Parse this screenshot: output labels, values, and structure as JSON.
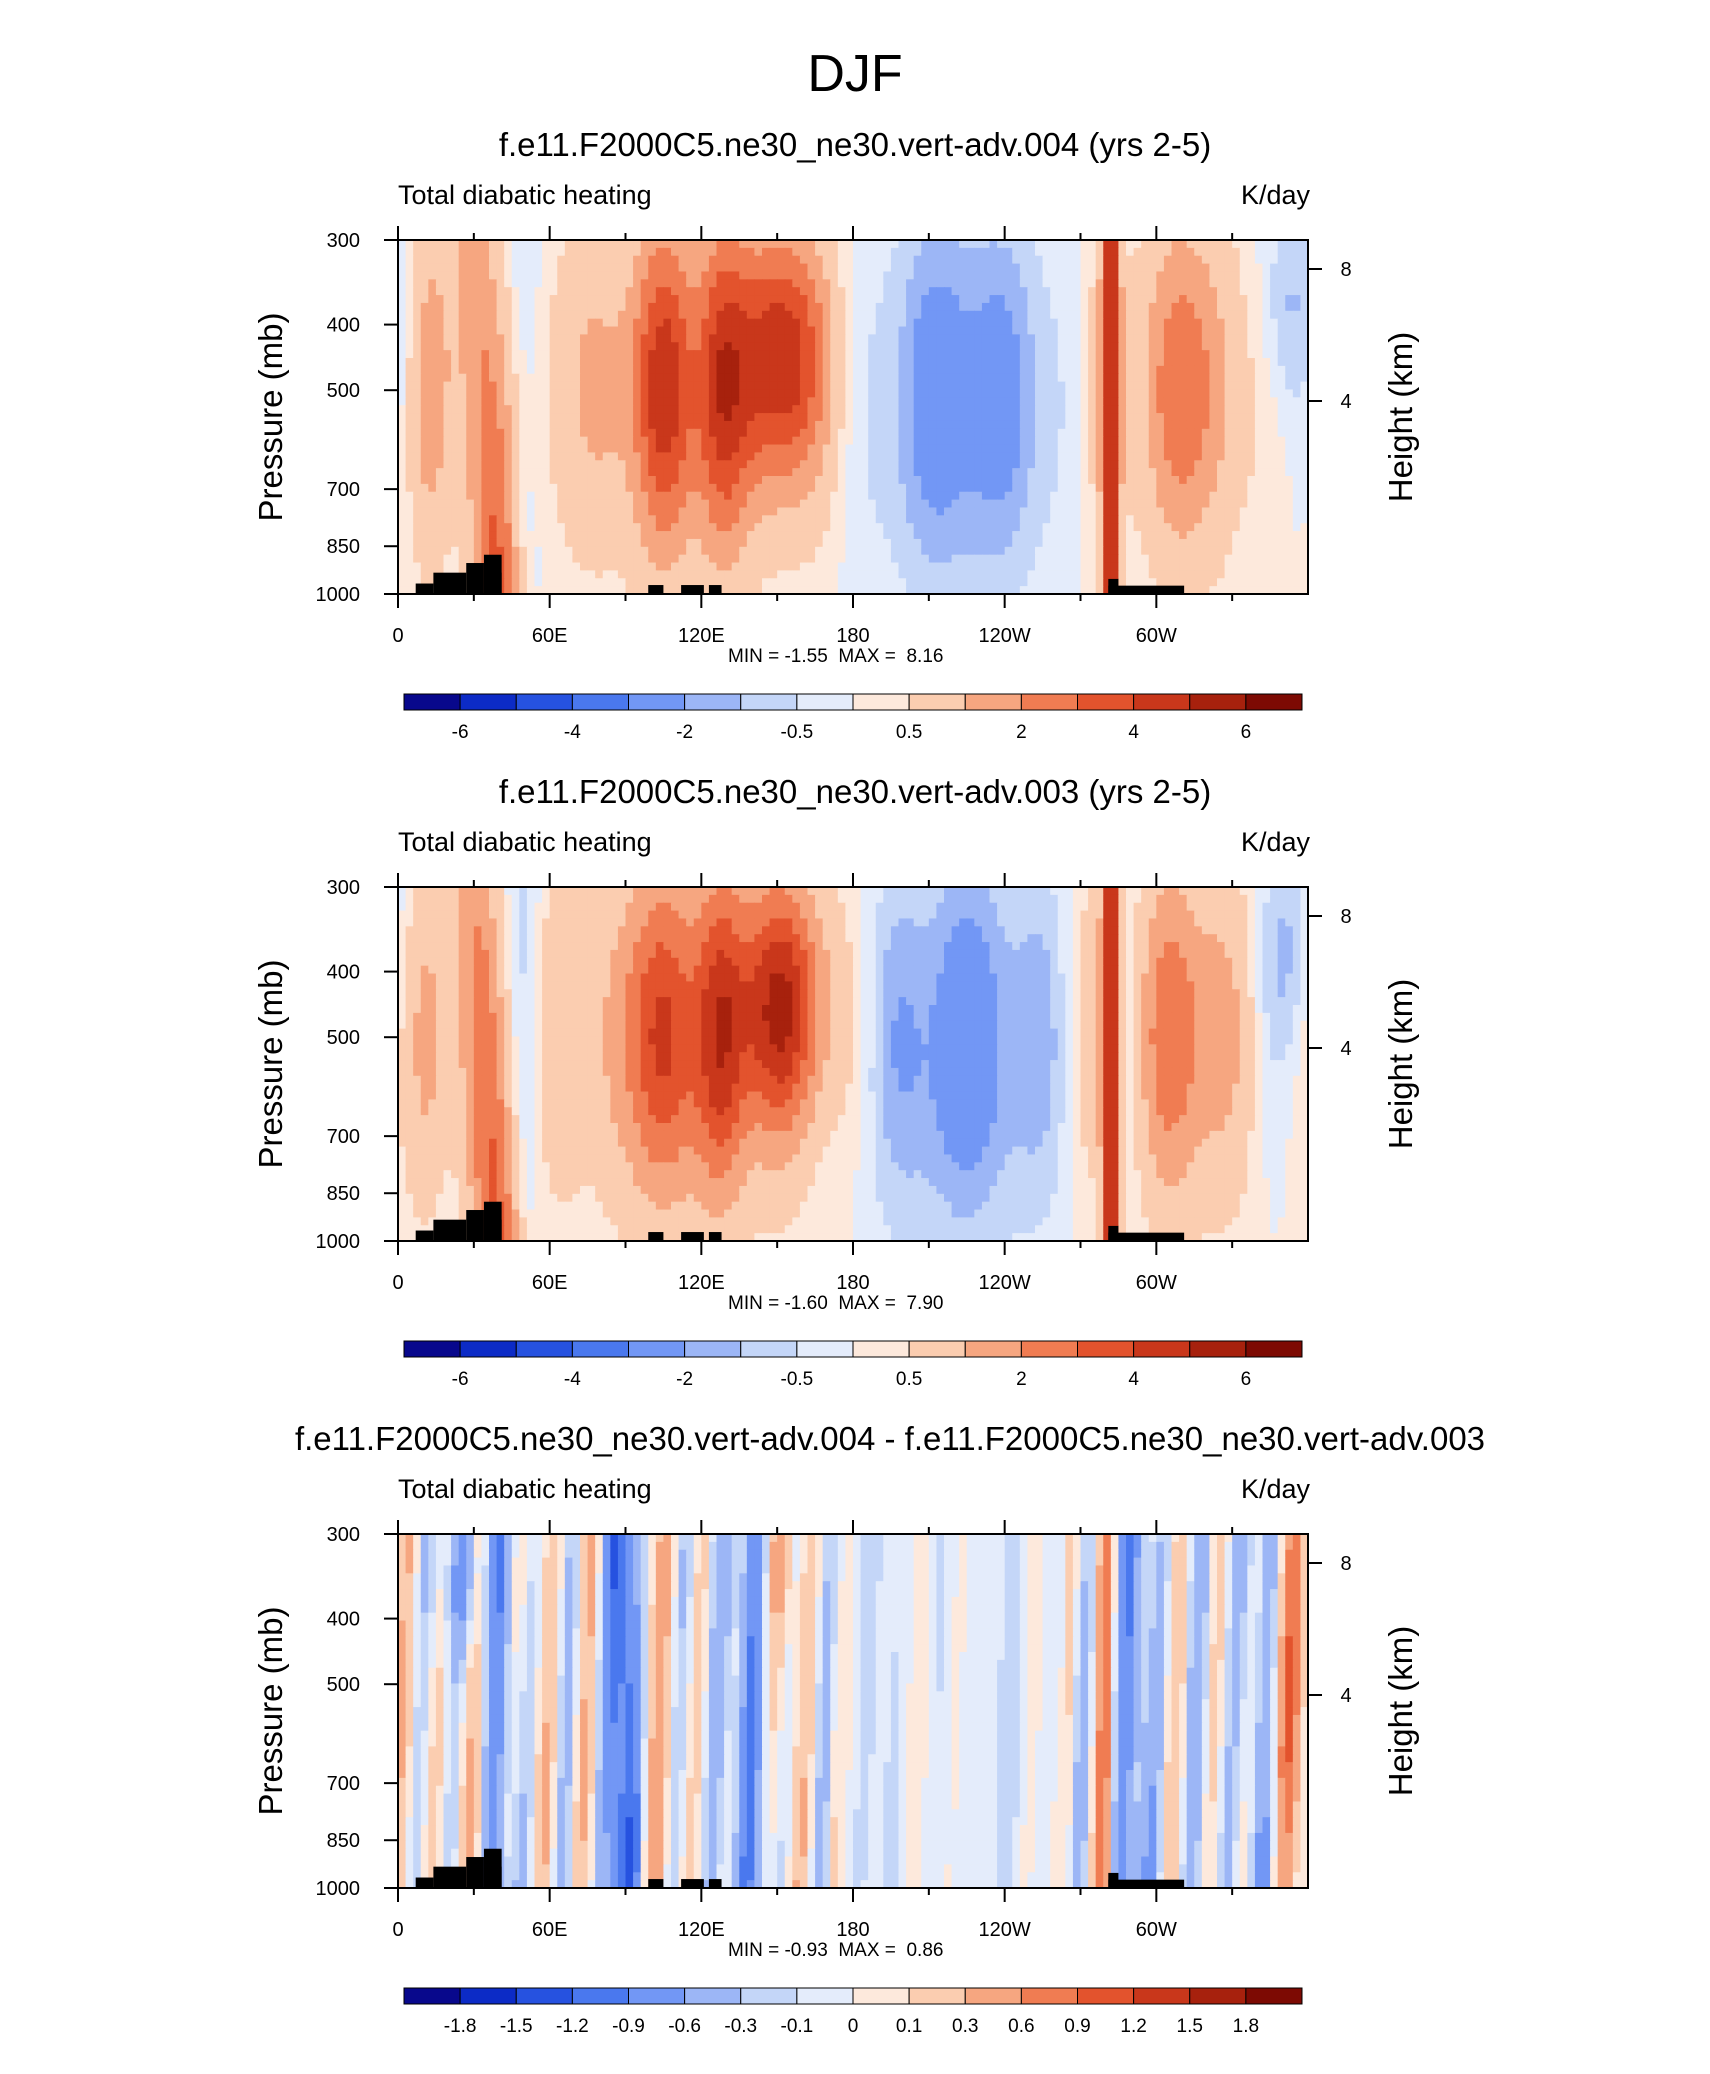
{
  "title": "DJF",
  "chart_data": [
    {
      "type": "heatmap",
      "title": "f.e11.F2000C5.ne30_ne30.vert-adv.004 (yrs 2-5)",
      "left_string": "Total diabatic heating",
      "right_string": "K/day",
      "ylabel": "Pressure (mb)",
      "y2label": "Height (km)",
      "x_ticks": [
        "0",
        "60E",
        "120E",
        "180",
        "120W",
        "60W"
      ],
      "y_ticks": [
        "300",
        "400",
        "500",
        "700",
        "850",
        "1000"
      ],
      "y2_ticks": [
        "8",
        "4"
      ],
      "min_label": "MIN =",
      "min_value": "-1.55",
      "max_label": "MAX =",
      "max_value": "8.16",
      "colorbar_labels": [
        "-6",
        "-4",
        "-2",
        "-0.5",
        "0.5",
        "2",
        "4",
        "6"
      ]
    },
    {
      "type": "heatmap",
      "title": "f.e11.F2000C5.ne30_ne30.vert-adv.003 (yrs 2-5)",
      "left_string": "Total diabatic heating",
      "right_string": "K/day",
      "ylabel": "Pressure (mb)",
      "y2label": "Height (km)",
      "x_ticks": [
        "0",
        "60E",
        "120E",
        "180",
        "120W",
        "60W"
      ],
      "y_ticks": [
        "300",
        "400",
        "500",
        "700",
        "850",
        "1000"
      ],
      "y2_ticks": [
        "8",
        "4"
      ],
      "min_label": "MIN =",
      "min_value": "-1.60",
      "max_label": "MAX =",
      "max_value": "7.90",
      "colorbar_labels": [
        "-6",
        "-4",
        "-2",
        "-0.5",
        "0.5",
        "2",
        "4",
        "6"
      ]
    },
    {
      "type": "heatmap",
      "title": "f.e11.F2000C5.ne30_ne30.vert-adv.004 - f.e11.F2000C5.ne30_ne30.vert-adv.003",
      "left_string": "Total diabatic heating",
      "right_string": "K/day",
      "ylabel": "Pressure (mb)",
      "y2label": "Height (km)",
      "x_ticks": [
        "0",
        "60E",
        "120E",
        "180",
        "120W",
        "60W"
      ],
      "y_ticks": [
        "300",
        "400",
        "500",
        "700",
        "850",
        "1000"
      ],
      "y2_ticks": [
        "8",
        "4"
      ],
      "min_label": "MIN =",
      "min_value": "-0.93",
      "max_label": "MAX =",
      "max_value": "0.86",
      "colorbar_labels": [
        "-1.8",
        "-1.5",
        "-1.2",
        "-0.9",
        "-0.6",
        "-0.3",
        "-0.1",
        "0",
        "0.1",
        "0.3",
        "0.6",
        "0.9",
        "1.2",
        "1.5",
        "1.8"
      ]
    }
  ],
  "colors": {
    "palette": [
      "#08088c",
      "#0c2bc6",
      "#2652e0",
      "#4a78ee",
      "#7297f5",
      "#9cb6f6",
      "#c4d6f8",
      "#e4ecfb",
      "#fde9dc",
      "#fbcdb0",
      "#f6a680",
      "#f07c52",
      "#e3532d",
      "#c9371b",
      "#a7210d",
      "#7d0a03"
    ],
    "terrain": "#000000"
  }
}
